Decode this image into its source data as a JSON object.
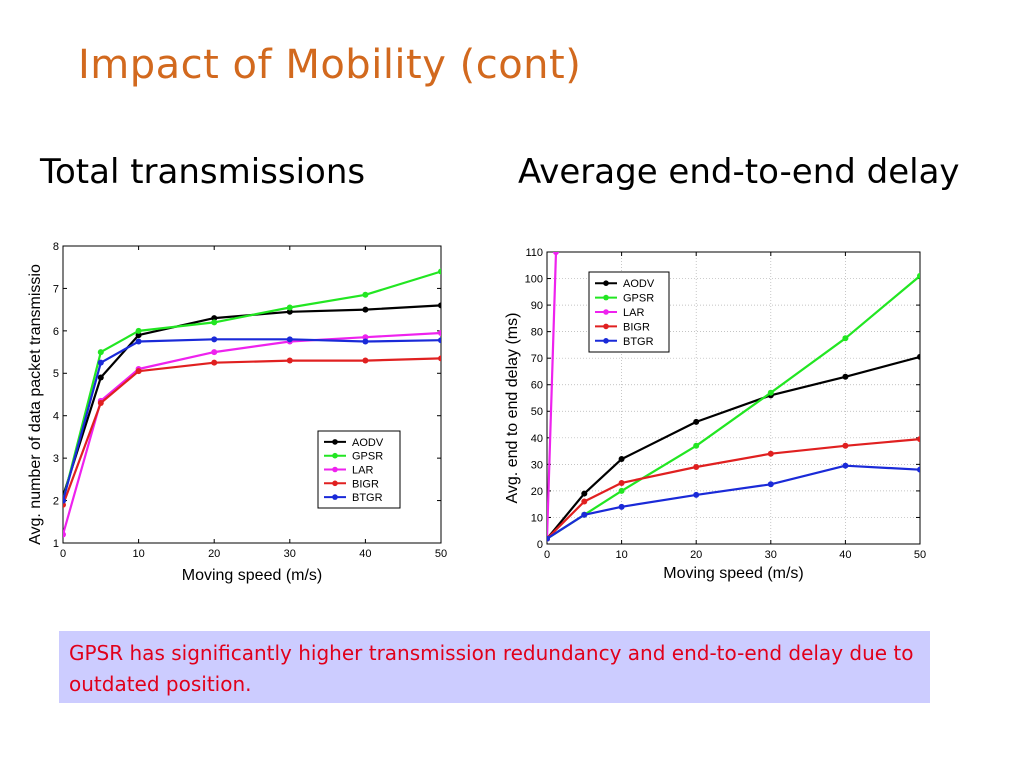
{
  "slide": {
    "title": "Impact of Mobility (cont)",
    "left_subtitle": "Total transmissions",
    "right_subtitle": "Average end-to-end delay",
    "note": "GPSR has significantly higher transmission redundancy and end-to-end delay due to outdated position."
  },
  "colors": {
    "title": "#d2691e",
    "note_text": "#e0001b",
    "note_bg": "#ccccff",
    "AODV": "#000000",
    "GPSR": "#22e622",
    "LAR": "#ee22ee",
    "BIGR": "#e02020",
    "BTGR": "#1a2ad8"
  },
  "chart_data": [
    {
      "type": "line",
      "xlabel": "Moving speed (m/s)",
      "ylabel": "Avg. number of data packet transmissio",
      "xlim": [
        0,
        50
      ],
      "ylim": [
        1,
        8
      ],
      "xticks": [
        0,
        10,
        20,
        30,
        40,
        50
      ],
      "yticks": [
        1,
        2,
        3,
        4,
        5,
        6,
        7,
        8
      ],
      "grid": false,
      "legend_position": "lower-right",
      "x": [
        0,
        5,
        10,
        20,
        30,
        40,
        50
      ],
      "series": [
        {
          "name": "AODV",
          "values": [
            2.1,
            4.9,
            5.9,
            6.3,
            6.45,
            6.5,
            6.6
          ]
        },
        {
          "name": "GPSR",
          "values": [
            2.0,
            5.5,
            6.0,
            6.2,
            6.55,
            6.85,
            7.4
          ]
        },
        {
          "name": "LAR",
          "values": [
            1.2,
            4.35,
            5.1,
            5.5,
            5.75,
            5.85,
            5.95
          ]
        },
        {
          "name": "BIGR",
          "values": [
            1.9,
            4.3,
            5.05,
            5.25,
            5.3,
            5.3,
            5.35
          ]
        },
        {
          "name": "BTGR",
          "values": [
            2.0,
            5.25,
            5.75,
            5.8,
            5.8,
            5.75,
            5.78
          ]
        }
      ]
    },
    {
      "type": "line",
      "xlabel": "Moving speed (m/s)",
      "ylabel": "Avg. end to end delay (ms)",
      "xlim": [
        0,
        50
      ],
      "ylim": [
        0,
        110
      ],
      "xticks": [
        0,
        10,
        20,
        30,
        40,
        50
      ],
      "yticks": [
        0,
        10,
        20,
        30,
        40,
        50,
        60,
        70,
        80,
        90,
        100,
        110
      ],
      "grid": true,
      "legend_position": "top-left",
      "x": [
        0,
        5,
        10,
        20,
        30,
        40,
        50
      ],
      "series": [
        {
          "name": "AODV",
          "values": [
            2,
            19,
            32,
            46,
            56,
            63,
            70.5
          ]
        },
        {
          "name": "GPSR",
          "values": [
            2,
            11,
            20,
            37,
            57,
            77.5,
            101
          ]
        },
        {
          "name": "LAR",
          "x": [
            0,
            1.2
          ],
          "values": [
            2,
            110
          ]
        },
        {
          "name": "BIGR",
          "values": [
            2,
            16,
            23,
            29,
            34,
            37,
            39.5
          ]
        },
        {
          "name": "BTGR",
          "values": [
            2,
            11,
            14,
            18.5,
            22.5,
            29.5,
            28
          ]
        }
      ]
    }
  ]
}
